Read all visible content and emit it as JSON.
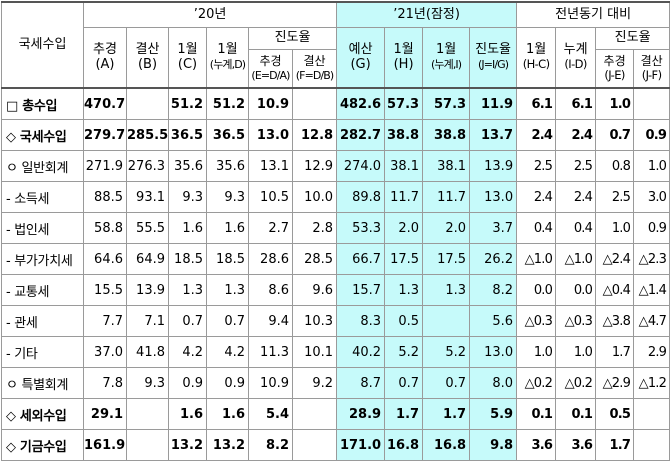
{
  "header": {
    "row_label": "국세수입",
    "group_2020": "’20년",
    "group_2021": "’21년(잠정)",
    "group_yoy": "전년동기 대비",
    "progress_2020": "진도율",
    "progress_yoy": "진도율",
    "columns": [
      {
        "line1": "추경",
        "line2": "(A)"
      },
      {
        "line1": "결산",
        "line2": "(B)"
      },
      {
        "line1": "1월",
        "line2": "(C)"
      },
      {
        "line1": "1월",
        "line2": "(누계,D)"
      },
      {
        "line1": "추경",
        "line2": "(E=D/A)"
      },
      {
        "line1": "결산",
        "line2": "(F=D/B)"
      },
      {
        "line1": "예산",
        "line2": "(G)"
      },
      {
        "line1": "1월",
        "line2": "(H)"
      },
      {
        "line1": "1월",
        "line2": "(누계,I)"
      },
      {
        "line1": "진도율",
        "line2": "(J=I/G)"
      },
      {
        "line1": "1월",
        "line2": "(H-C)"
      },
      {
        "line1": "누계",
        "line2": "(I-D)"
      },
      {
        "line1": "추경",
        "line2": "(J-E)"
      },
      {
        "line1": "결산",
        "line2": "(J-F)"
      }
    ]
  },
  "rows": [
    {
      "label": "□ 총수입",
      "values": [
        "470.7",
        "",
        "51.2",
        "51.2",
        "10.9",
        "",
        "482.6",
        "57.3",
        "57.3",
        "11.9",
        "6.1",
        "6.1",
        "1.0",
        ""
      ]
    },
    {
      "label": "◇ 국세수입",
      "values": [
        "279.7",
        "285.5",
        "36.5",
        "36.5",
        "13.0",
        "12.8",
        "282.7",
        "38.8",
        "38.8",
        "13.7",
        "2.4",
        "2.4",
        "0.7",
        "0.9"
      ]
    },
    {
      "label": "ㅇ 일반회계",
      "values": [
        "271.9",
        "276.3",
        "35.6",
        "35.6",
        "13.1",
        "12.9",
        "274.0",
        "38.1",
        "38.1",
        "13.9",
        "2.5",
        "2.5",
        "0.8",
        "1.0"
      ]
    },
    {
      "label": "- 소득세",
      "values": [
        "88.5",
        "93.1",
        "9.3",
        "9.3",
        "10.5",
        "10.0",
        "89.8",
        "11.7",
        "11.7",
        "13.0",
        "2.4",
        "2.4",
        "2.5",
        "3.0"
      ]
    },
    {
      "label": "- 법인세",
      "values": [
        "58.8",
        "55.5",
        "1.6",
        "1.6",
        "2.7",
        "2.8",
        "53.3",
        "2.0",
        "2.0",
        "3.7",
        "0.4",
        "0.4",
        "1.0",
        "0.9"
      ]
    },
    {
      "label": "- 부가가치세",
      "values": [
        "64.6",
        "64.9",
        "18.5",
        "18.5",
        "28.6",
        "28.5",
        "66.7",
        "17.5",
        "17.5",
        "26.2",
        "△1.0",
        "△1.0",
        "△2.4",
        "△2.3"
      ]
    },
    {
      "label": "- 교통세",
      "values": [
        "15.5",
        "13.9",
        "1.3",
        "1.3",
        "8.6",
        "9.6",
        "15.7",
        "1.3",
        "1.3",
        "8.2",
        "0.0",
        "0.0",
        "△0.4",
        "△1.4"
      ]
    },
    {
      "label": "- 관세",
      "values": [
        "7.7",
        "7.1",
        "0.7",
        "0.7",
        "9.4",
        "10.3",
        "8.3",
        "0.5",
        "",
        "5.6",
        "△0.3",
        "△0.3",
        "△3.8",
        "△4.7"
      ]
    },
    {
      "label": "- 기타",
      "values": [
        "37.0",
        "41.8",
        "4.2",
        "4.2",
        "11.3",
        "10.1",
        "40.2",
        "5.2",
        "5.2",
        "13.0",
        "1.0",
        "1.0",
        "1.7",
        "2.9"
      ]
    },
    {
      "label": "ㅇ 특별회계",
      "values": [
        "7.8",
        "9.3",
        "0.9",
        "0.9",
        "10.9",
        "9.2",
        "8.7",
        "0.7",
        "0.7",
        "8.0",
        "△0.2",
        "△0.2",
        "△2.9",
        "△1.2"
      ]
    },
    {
      "label": "◇ 세외수입",
      "values": [
        "29.1",
        "",
        "1.6",
        "1.6",
        "5.4",
        "",
        "28.9",
        "1.7",
        "1.7",
        "5.9",
        "0.1",
        "0.1",
        "0.5",
        ""
      ]
    },
    {
      "label": "◇ 기금수입",
      "values": [
        "161.9",
        "",
        "13.2",
        "13.2",
        "8.2",
        "",
        "171.0",
        "16.8",
        "16.8",
        "9.8",
        "3.6",
        "3.6",
        "1.7",
        ""
      ]
    }
  ],
  "highlight_color": "#c6fafa"
}
